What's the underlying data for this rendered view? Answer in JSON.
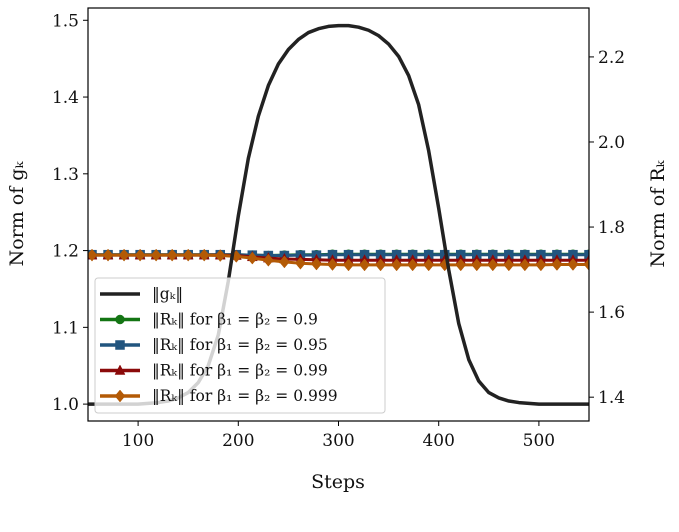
{
  "chart_data": {
    "type": "line",
    "xlabel": "Steps",
    "ylabel_left": "Norm of gₖ",
    "ylabel_right": "Norm of Rₖ",
    "xlim": [
      50,
      550
    ],
    "ylim_left": [
      0.978,
      1.516
    ],
    "ylim_right": [
      1.344,
      2.315
    ],
    "xticks": [
      100,
      200,
      300,
      400,
      500
    ],
    "yticks_left": [
      "1.0",
      "1.1",
      "1.2",
      "1.3",
      "1.4",
      "1.5"
    ],
    "yticks_right": [
      "1.4",
      "1.6",
      "1.8",
      "2.0",
      "2.2"
    ],
    "grid": false,
    "legend_placement": "lower-left",
    "g_series": {
      "name": "‖gₖ‖",
      "axis": "left",
      "color": "#222222",
      "x": [
        50,
        60,
        70,
        80,
        90,
        100,
        110,
        120,
        130,
        140,
        150,
        160,
        170,
        180,
        190,
        200,
        210,
        220,
        230,
        240,
        250,
        260,
        270,
        280,
        290,
        300,
        310,
        320,
        330,
        340,
        350,
        360,
        370,
        380,
        390,
        400,
        410,
        420,
        430,
        440,
        450,
        460,
        470,
        480,
        490,
        500,
        510,
        520,
        530,
        540,
        550
      ],
      "y": [
        1.0,
        1.0,
        1.0,
        1.0,
        1.0,
        1.0,
        1.001,
        1.002,
        1.004,
        1.008,
        1.015,
        1.028,
        1.05,
        1.09,
        1.16,
        1.245,
        1.32,
        1.375,
        1.415,
        1.443,
        1.462,
        1.475,
        1.484,
        1.489,
        1.492,
        1.493,
        1.493,
        1.491,
        1.487,
        1.48,
        1.469,
        1.453,
        1.428,
        1.39,
        1.33,
        1.255,
        1.175,
        1.105,
        1.058,
        1.03,
        1.015,
        1.008,
        1.004,
        1.002,
        1.001,
        1.0,
        1.0,
        1.0,
        1.0,
        1.0,
        1.0
      ]
    },
    "r_x": [
      54,
      70,
      86,
      102,
      118,
      134,
      150,
      166,
      182,
      198,
      214,
      230,
      246,
      262,
      278,
      294,
      310,
      326,
      342,
      358,
      374,
      390,
      406,
      422,
      438,
      454,
      470,
      486,
      502,
      518,
      534,
      550
    ],
    "series": [
      {
        "name": "‖Rₖ‖ for β₁ = β₂ = 0.9",
        "axis": "right",
        "color": "#137513",
        "marker": "circle",
        "values": [
          1.735,
          1.735,
          1.735,
          1.735,
          1.735,
          1.735,
          1.735,
          1.735,
          1.735,
          1.735,
          1.734,
          1.733,
          1.734,
          1.735,
          1.735,
          1.736,
          1.736,
          1.736,
          1.736,
          1.736,
          1.736,
          1.736,
          1.736,
          1.736,
          1.736,
          1.736,
          1.736,
          1.736,
          1.736,
          1.736,
          1.736,
          1.736
        ]
      },
      {
        "name": "‖Rₖ‖ for β₁ = β₂ = 0.95",
        "axis": "right",
        "color": "#22557f",
        "marker": "square",
        "values": [
          1.735,
          1.735,
          1.735,
          1.735,
          1.735,
          1.735,
          1.735,
          1.735,
          1.735,
          1.735,
          1.734,
          1.733,
          1.733,
          1.734,
          1.734,
          1.735,
          1.735,
          1.735,
          1.735,
          1.735,
          1.735,
          1.735,
          1.735,
          1.735,
          1.735,
          1.735,
          1.735,
          1.735,
          1.735,
          1.735,
          1.735,
          1.735
        ]
      },
      {
        "name": "‖Rₖ‖ for β₁ = β₂ = 0.99",
        "axis": "right",
        "color": "#8b0a0a",
        "marker": "triangle",
        "values": [
          1.734,
          1.734,
          1.734,
          1.734,
          1.734,
          1.734,
          1.734,
          1.734,
          1.734,
          1.733,
          1.73,
          1.727,
          1.725,
          1.724,
          1.723,
          1.722,
          1.722,
          1.722,
          1.722,
          1.722,
          1.722,
          1.722,
          1.722,
          1.722,
          1.722,
          1.722,
          1.722,
          1.722,
          1.722,
          1.722,
          1.722,
          1.722
        ]
      },
      {
        "name": "‖Rₖ‖ for β₁ = β₂ = 0.999",
        "axis": "right",
        "color": "#b35a06",
        "marker": "diamond",
        "values": [
          1.734,
          1.734,
          1.734,
          1.734,
          1.734,
          1.734,
          1.734,
          1.734,
          1.733,
          1.731,
          1.727,
          1.722,
          1.718,
          1.715,
          1.713,
          1.712,
          1.711,
          1.711,
          1.711,
          1.711,
          1.711,
          1.711,
          1.711,
          1.711,
          1.711,
          1.711,
          1.711,
          1.711,
          1.711,
          1.712,
          1.712,
          1.712
        ]
      }
    ]
  }
}
